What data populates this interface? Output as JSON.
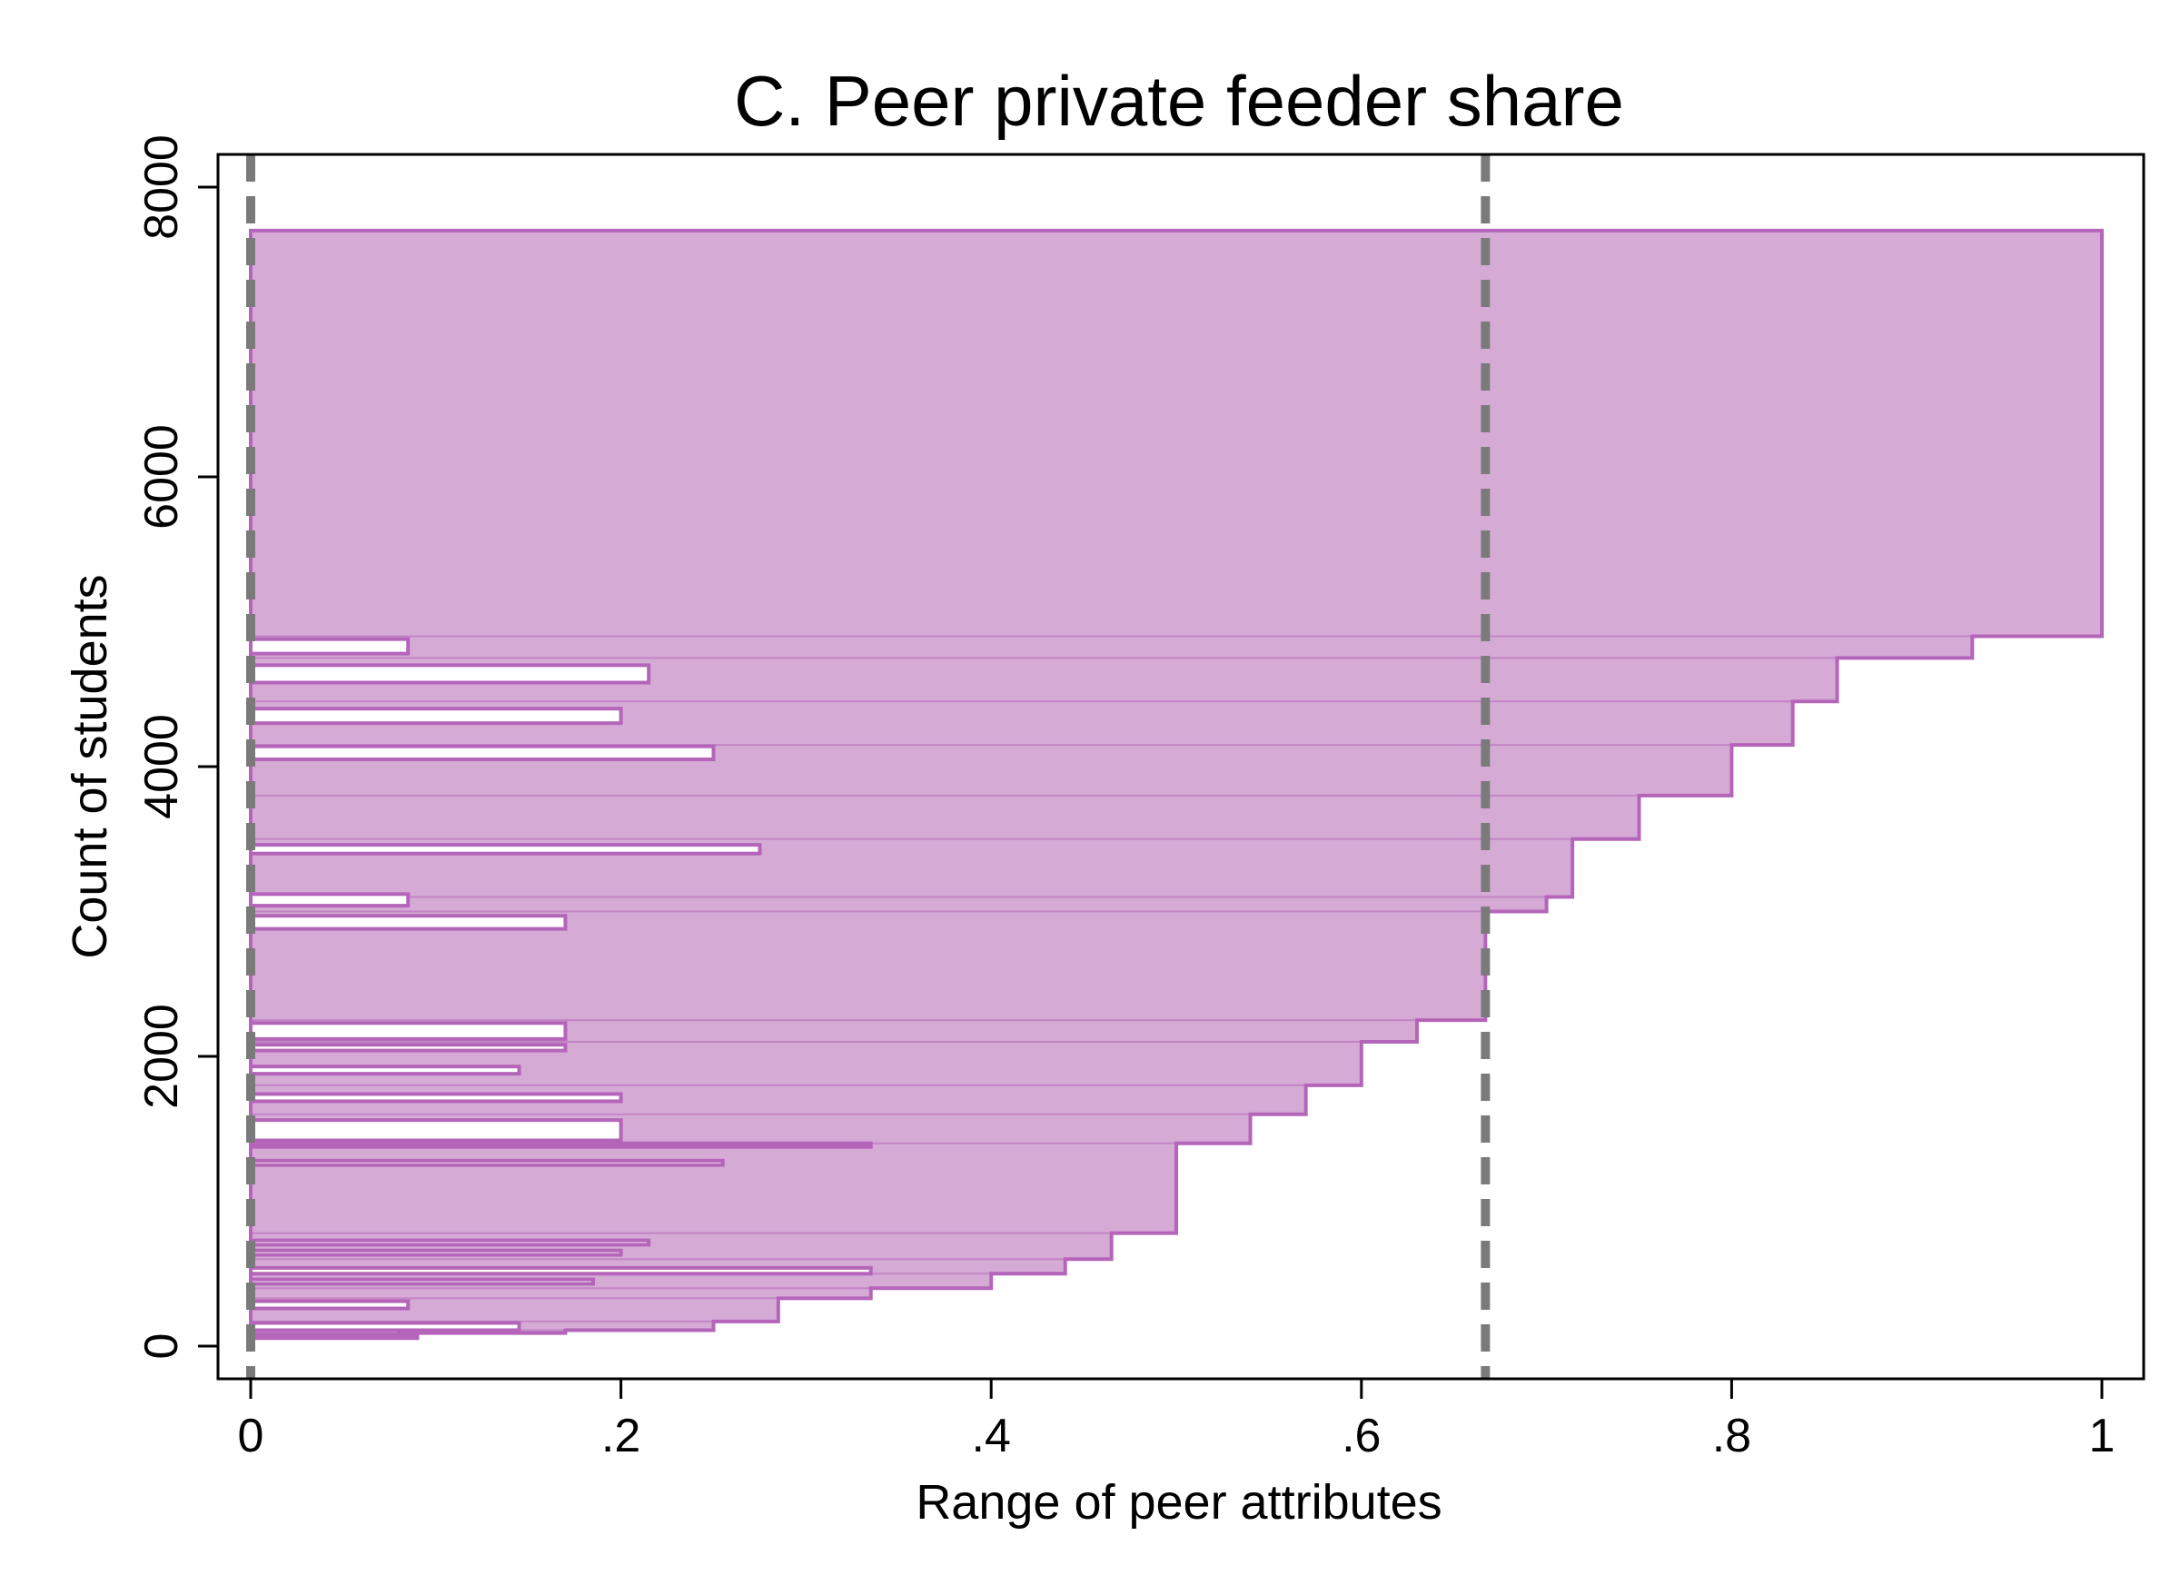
{
  "chart_data": {
    "type": "area",
    "title": "C. Peer private feeder share",
    "xlabel": "Range of peer attributes",
    "ylabel": "Count of students",
    "xlim": [
      0,
      1
    ],
    "ylim": [
      0,
      8000
    ],
    "x_ticks": [
      {
        "value": 0,
        "label": "0"
      },
      {
        "value": 0.2,
        "label": ".2"
      },
      {
        "value": 0.4,
        "label": ".4"
      },
      {
        "value": 0.6,
        "label": ".6"
      },
      {
        "value": 0.8,
        "label": ".8"
      },
      {
        "value": 1,
        "label": "1"
      }
    ],
    "y_ticks": [
      {
        "value": 0,
        "label": "0"
      },
      {
        "value": 2000,
        "label": "2000"
      },
      {
        "value": 4000,
        "label": "4000"
      },
      {
        "value": 6000,
        "label": "6000"
      },
      {
        "value": 8000,
        "label": "8000"
      }
    ],
    "grid": false,
    "legend": "none",
    "fill_color": "#d5abd6",
    "edge_color": "#b565b9",
    "reference_line_color": "#7a7a7a",
    "reference_lines_x": [
      0,
      0.667
    ],
    "series": [
      {
        "kind": "range_band",
        "description_rows": "each row: cumulative student count y, band from x_low to x_high",
        "rows": [
          {
            "y": 70,
            "x_low": 0.0,
            "x_high": 0.08
          },
          {
            "y": 90,
            "x_low": 0.0,
            "x_high": 0.17
          },
          {
            "y": 110,
            "x_low": 0.0,
            "x_high": 0.25
          },
          {
            "y": 170,
            "x_low": 0.0,
            "x_high": 0.285
          },
          {
            "y": 330,
            "x_low": 0.0,
            "x_high": 0.335
          },
          {
            "y": 400,
            "x_low": 0.0,
            "x_high": 0.4
          },
          {
            "y": 500,
            "x_low": 0.0,
            "x_high": 0.44
          },
          {
            "y": 600,
            "x_low": 0.0,
            "x_high": 0.465
          },
          {
            "y": 780,
            "x_low": 0.0,
            "x_high": 0.5
          },
          {
            "y": 1400,
            "x_low": 0.0,
            "x_high": 0.54
          },
          {
            "y": 1600,
            "x_low": 0.0,
            "x_high": 0.57
          },
          {
            "y": 1800,
            "x_low": 0.0,
            "x_high": 0.6
          },
          {
            "y": 2100,
            "x_low": 0.0,
            "x_high": 0.63
          },
          {
            "y": 2250,
            "x_low": 0.0,
            "x_high": 0.667
          },
          {
            "y": 3000,
            "x_low": 0.0,
            "x_high": 0.7
          },
          {
            "y": 3100,
            "x_low": 0.0,
            "x_high": 0.714
          },
          {
            "y": 3500,
            "x_low": 0.0,
            "x_high": 0.75
          },
          {
            "y": 3800,
            "x_low": 0.0,
            "x_high": 0.8
          },
          {
            "y": 4150,
            "x_low": 0.0,
            "x_high": 0.833
          },
          {
            "y": 4450,
            "x_low": 0.0,
            "x_high": 0.857
          },
          {
            "y": 4750,
            "x_low": 0.0,
            "x_high": 0.93
          },
          {
            "y": 4900,
            "x_low": 0.0,
            "x_high": 1.0
          },
          {
            "y": 7700,
            "x_low": 0.0,
            "x_high": 1.0
          }
        ],
        "unfilled_slivers": [
          {
            "y_bottom": 55,
            "y_top": 80,
            "x_high": 0.09
          },
          {
            "y_bottom": 110,
            "y_top": 160,
            "x_high": 0.145
          },
          {
            "y_bottom": 260,
            "y_top": 310,
            "x_high": 0.085
          },
          {
            "y_bottom": 430,
            "y_top": 460,
            "x_high": 0.185
          },
          {
            "y_bottom": 500,
            "y_top": 540,
            "x_high": 0.335
          },
          {
            "y_bottom": 630,
            "y_top": 660,
            "x_high": 0.2
          },
          {
            "y_bottom": 700,
            "y_top": 730,
            "x_high": 0.215
          },
          {
            "y_bottom": 1250,
            "y_top": 1280,
            "x_high": 0.255
          },
          {
            "y_bottom": 1380,
            "y_top": 1400,
            "x_high": 0.335
          },
          {
            "y_bottom": 1420,
            "y_top": 1560,
            "x_high": 0.2
          },
          {
            "y_bottom": 1690,
            "y_top": 1740,
            "x_high": 0.2
          },
          {
            "y_bottom": 1880,
            "y_top": 1930,
            "x_high": 0.145
          },
          {
            "y_bottom": 2040,
            "y_top": 2080,
            "x_high": 0.17
          },
          {
            "y_bottom": 2120,
            "y_top": 2230,
            "x_high": 0.17
          },
          {
            "y_bottom": 2880,
            "y_top": 2970,
            "x_high": 0.17
          },
          {
            "y_bottom": 3040,
            "y_top": 3120,
            "x_high": 0.085
          },
          {
            "y_bottom": 3400,
            "y_top": 3460,
            "x_high": 0.275
          },
          {
            "y_bottom": 4050,
            "y_top": 4140,
            "x_high": 0.25
          },
          {
            "y_bottom": 4300,
            "y_top": 4400,
            "x_high": 0.2
          },
          {
            "y_bottom": 4580,
            "y_top": 4700,
            "x_high": 0.215
          },
          {
            "y_bottom": 4780,
            "y_top": 4880,
            "x_high": 0.085
          }
        ]
      }
    ]
  }
}
